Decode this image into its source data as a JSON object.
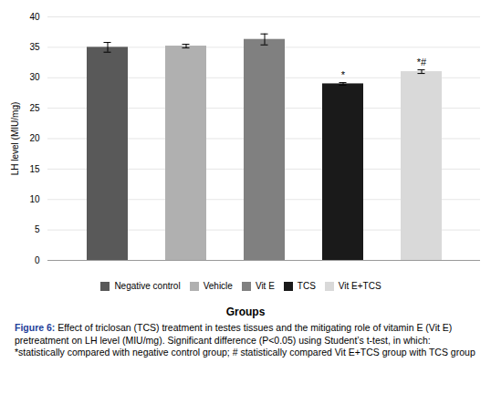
{
  "chart_data": {
    "type": "bar",
    "categories": [
      "Negative control",
      "Vehicle",
      "Vit E",
      "TCS",
      "Vit E+TCS"
    ],
    "values": [
      35.0,
      35.2,
      36.3,
      29.0,
      31.0
    ],
    "errors": [
      0.8,
      0.3,
      0.9,
      0.2,
      0.3
    ],
    "colors": [
      "#595959",
      "#b0b0b0",
      "#808080",
      "#1a1a1a",
      "#d9d9d9"
    ],
    "ylabel": "LH level (MIU/mg)",
    "xlabel": "Groups",
    "ylim": [
      0,
      40
    ],
    "yticks": [
      0,
      5,
      10,
      15,
      20,
      25,
      30,
      35,
      40
    ],
    "grid": true,
    "legend": "bottom",
    "tick_labels": "y",
    "annotations": [
      {
        "category": "TCS",
        "text": "*"
      },
      {
        "category": "Vit E+TCS",
        "text": "*#"
      }
    ],
    "caption": "Figure 6: Effect of triclosan (TCS) treatment in testes tissues and the mitigating role of vitamin E (Vit E) pretreatment on LH level (MIU/mg). Significant difference (P<0.05) using Student’s t-test, in which: *statistically compared with negative control group; # statistically compared Vit E+TCS group with TCS group"
  }
}
